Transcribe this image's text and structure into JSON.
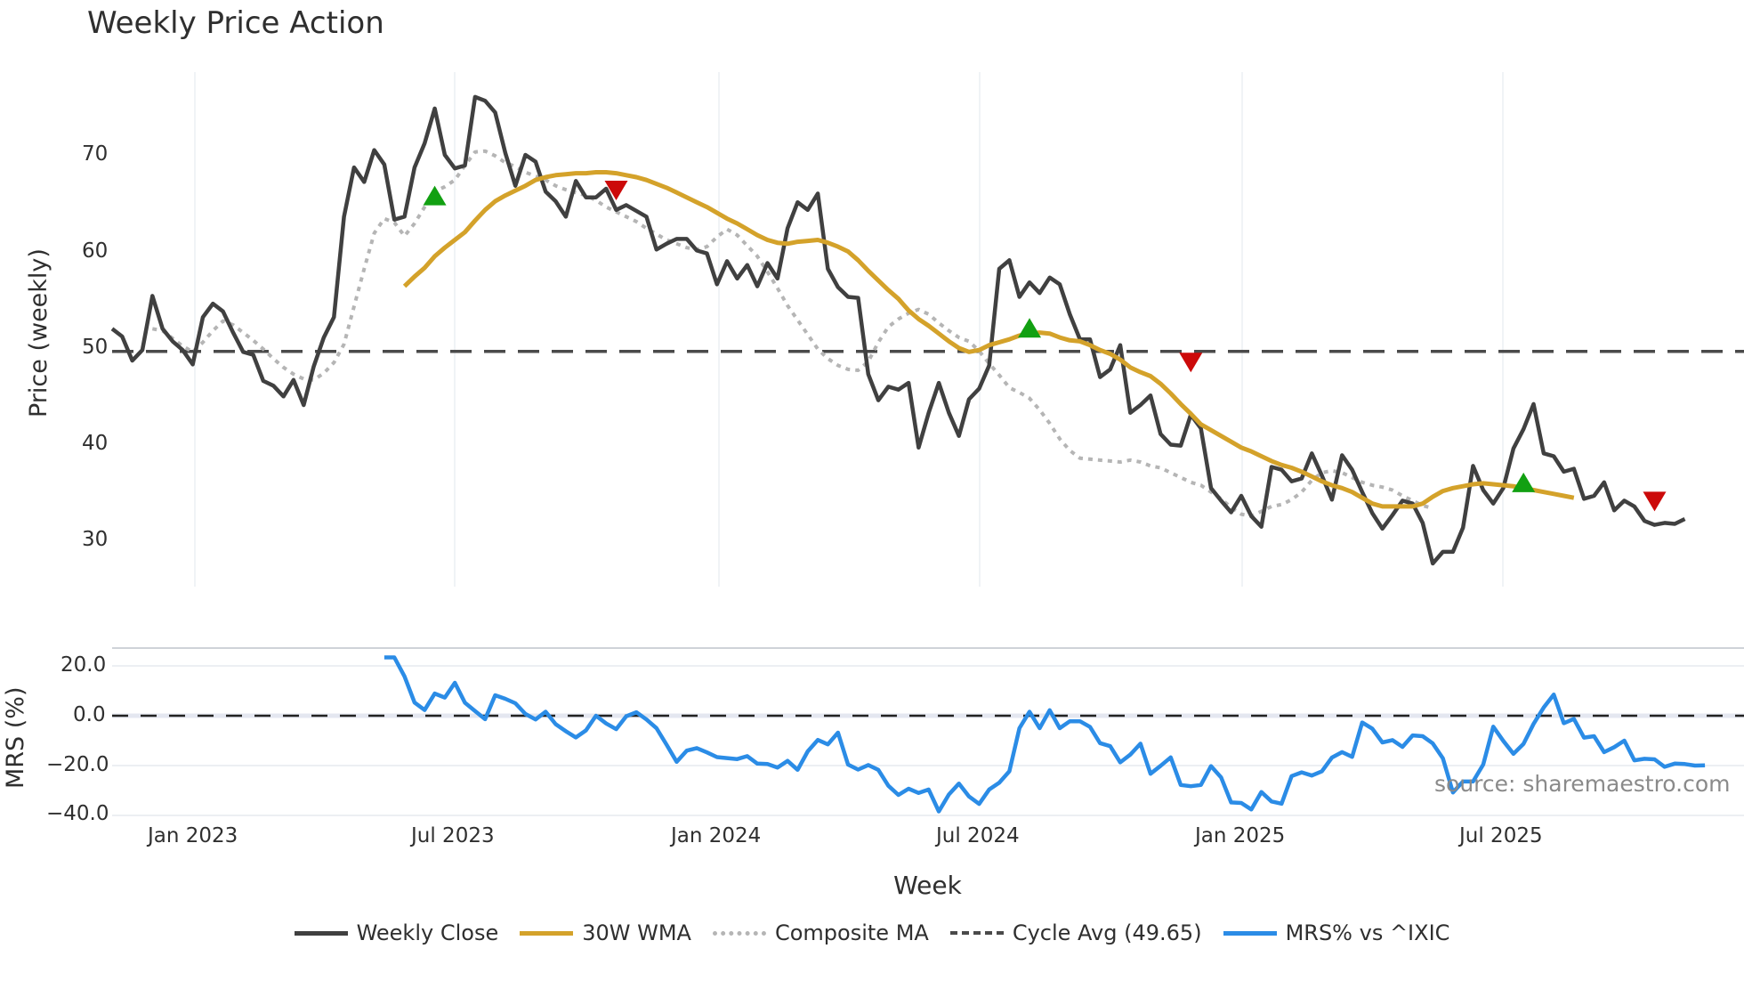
{
  "title": "Weekly Price Action",
  "source_note": "source: sharemaestro.com",
  "colors": {
    "close": "#404040",
    "wma": "#d4a22a",
    "composite": "#b5b5b5",
    "cycle": "#4a4a4a",
    "mrs": "#2b8ce6",
    "buy": "#12a012",
    "sell": "#cc0a0a",
    "grid": "#eceff3",
    "source": "#8a8a8a"
  },
  "legend": [
    {
      "label": "Weekly Close",
      "style": "solid",
      "color": "#404040"
    },
    {
      "label": "30W WMA",
      "style": "solid",
      "color": "#d4a22a"
    },
    {
      "label": "Composite MA",
      "style": "dotted",
      "color": "#b5b5b5"
    },
    {
      "label": "Cycle Avg (49.65)",
      "style": "dashed",
      "color": "#4a4a4a"
    },
    {
      "label": "MRS% vs ^IXIC",
      "style": "solid",
      "color": "#2b8ce6"
    }
  ],
  "chart_data": [
    {
      "type": "line",
      "title": "Weekly Price Action",
      "xlabel": "",
      "ylabel": "Price (weekly)",
      "ylim": [
        25,
        78
      ],
      "yticks": [
        30,
        40,
        50,
        60,
        70
      ],
      "x_start": "2022-11-07",
      "x_step_weeks": 1,
      "x_ticks": [
        "Jan 2023",
        "Jul 2023",
        "Jan 2024",
        "Jul 2024",
        "Jan 2025",
        "Jul 2025"
      ],
      "grid": "vertical",
      "series": [
        {
          "name": "Weekly Close",
          "start_index": 0,
          "values": [
            52.0,
            51.2,
            48.7,
            49.8,
            55.4,
            52.0,
            50.7,
            49.8,
            48.3,
            53.2,
            54.6,
            53.8,
            51.6,
            49.6,
            49.3,
            46.6,
            46.1,
            45.0,
            46.7,
            44.1,
            48.1,
            51.1,
            53.2,
            63.6,
            68.7,
            67.2,
            70.5,
            69.0,
            63.3,
            63.6,
            68.7,
            71.2,
            74.8,
            70.0,
            68.6,
            68.9,
            76.0,
            75.6,
            74.4,
            70.2,
            66.8,
            70.0,
            69.3,
            66.2,
            65.2,
            63.6,
            67.3,
            65.6,
            65.6,
            66.5,
            64.3,
            64.8,
            64.2,
            63.6,
            60.2,
            60.8,
            61.3,
            61.3,
            60.1,
            59.8,
            56.6,
            59.0,
            57.2,
            58.6,
            56.4,
            58.8,
            57.2,
            62.4,
            65.1,
            64.3,
            66.0,
            58.2,
            56.3,
            55.3,
            55.2,
            47.3,
            44.6,
            46.0,
            45.7,
            46.4,
            39.7,
            43.3,
            46.4,
            43.3,
            40.9,
            44.7,
            45.8,
            48.2,
            58.2,
            59.1,
            55.3,
            56.8,
            55.7,
            57.3,
            56.6,
            53.5,
            50.9,
            50.9,
            47.0,
            47.8,
            50.3,
            43.3,
            44.1,
            45.1,
            41.1,
            40.0,
            39.9,
            43.1,
            41.7,
            35.5,
            34.2,
            33.0,
            34.7,
            32.6,
            31.5,
            37.7,
            37.4,
            36.2,
            36.5,
            39.1,
            36.8,
            34.3,
            38.9,
            37.4,
            35.1,
            32.9,
            31.3,
            32.7,
            34.2,
            33.9,
            31.9,
            27.7,
            28.9,
            28.9,
            31.4,
            37.8,
            35.3,
            33.9,
            35.5,
            39.6,
            41.6,
            44.2,
            39.1,
            38.8,
            37.2,
            37.5,
            34.4,
            34.7,
            36.1,
            33.2,
            34.2,
            33.6,
            32.1,
            31.7,
            31.9,
            31.8,
            32.3
          ]
        },
        {
          "name": "30W WMA",
          "start_index": 29,
          "values": [
            56.4,
            57.4,
            58.3,
            59.5,
            60.4,
            61.2,
            62.0,
            63.2,
            64.3,
            65.2,
            65.8,
            66.3,
            66.8,
            67.4,
            67.7,
            67.9,
            68.0,
            68.1,
            68.1,
            68.2,
            68.2,
            68.1,
            67.9,
            67.7,
            67.4,
            67.0,
            66.6,
            66.1,
            65.6,
            65.1,
            64.6,
            64.0,
            63.4,
            62.9,
            62.3,
            61.7,
            61.2,
            60.9,
            60.8,
            61.0,
            61.1,
            61.2,
            60.9,
            60.5,
            60.0,
            59.1,
            58.0,
            57.0,
            56.0,
            55.1,
            53.9,
            53.0,
            52.3,
            51.5,
            50.7,
            50.0,
            49.6,
            49.8,
            50.3,
            50.6,
            50.9,
            51.3,
            51.5,
            51.6,
            51.5,
            51.1,
            50.8,
            50.7,
            50.3,
            49.8,
            49.4,
            48.8,
            48.0,
            47.5,
            47.1,
            46.3,
            45.3,
            44.2,
            43.2,
            42.1,
            41.5,
            40.9,
            40.3,
            39.7,
            39.3,
            38.8,
            38.3,
            37.9,
            37.6,
            37.2,
            36.7,
            36.2,
            35.8,
            35.5,
            35.1,
            34.5,
            33.9,
            33.6,
            33.6,
            33.6,
            33.6,
            33.9,
            34.6,
            35.2,
            35.5,
            35.7,
            35.9,
            36.0,
            35.9,
            35.8,
            35.7,
            35.5,
            35.3,
            35.1,
            34.9,
            34.7,
            34.5
          ]
        },
        {
          "name": "Composite MA",
          "start_index": 4,
          "values": [
            52.0,
            51.8,
            51.0,
            50.2,
            49.6,
            50.6,
            51.8,
            52.8,
            52.4,
            51.6,
            50.8,
            49.9,
            48.9,
            48.0,
            47.3,
            46.8,
            46.7,
            47.4,
            48.5,
            50.4,
            54.3,
            58.2,
            61.9,
            63.4,
            63.0,
            61.6,
            62.9,
            64.6,
            66.2,
            66.7,
            67.4,
            68.9,
            70.3,
            70.4,
            69.9,
            69.2,
            68.8,
            68.2,
            67.8,
            67.4,
            66.8,
            66.4,
            66.1,
            65.8,
            65.3,
            64.6,
            64.1,
            63.6,
            63.1,
            62.4,
            61.8,
            61.2,
            60.8,
            60.4,
            60.2,
            60.5,
            61.5,
            62.3,
            61.7,
            60.6,
            59.5,
            57.9,
            56.2,
            54.4,
            52.9,
            51.4,
            49.9,
            48.9,
            48.2,
            47.8,
            47.7,
            48.6,
            50.6,
            52.2,
            53.0,
            53.6,
            54.0,
            53.5,
            52.6,
            51.8,
            51.1,
            50.7,
            49.7,
            48.4,
            47.2,
            45.9,
            45.4,
            44.8,
            43.6,
            42.2,
            40.6,
            39.4,
            38.6,
            38.5,
            38.4,
            38.3,
            38.2,
            38.4,
            38.2,
            37.8,
            37.6,
            37.1,
            36.6,
            36.1,
            35.8,
            35.1,
            34.4,
            33.5,
            32.8,
            32.6,
            33.1,
            33.6,
            33.8,
            34.3,
            35.1,
            36.3,
            37.1,
            37.3,
            37.1,
            36.6,
            36.1,
            35.8,
            35.6,
            35.3,
            34.7,
            34.2,
            33.7,
            33.4
          ]
        },
        {
          "name": "Cycle Avg (49.65)",
          "constant": 49.65,
          "style": "dashed"
        }
      ],
      "markers": [
        {
          "type": "buy",
          "index": 32,
          "value": 65.7
        },
        {
          "type": "sell",
          "index": 50,
          "value": 66.4
        },
        {
          "type": "buy",
          "index": 91,
          "value": 52.0
        },
        {
          "type": "sell",
          "index": 107,
          "value": 48.6
        },
        {
          "type": "buy",
          "index": 140,
          "value": 36.0
        },
        {
          "type": "sell",
          "index": 153,
          "value": 34.2
        }
      ]
    },
    {
      "type": "line",
      "title": "",
      "xlabel": "Week",
      "ylabel": "MRS (%)",
      "ylim": [
        -40,
        27
      ],
      "yticks": [
        20.0,
        0.0,
        -20.0,
        -40.0
      ],
      "ytick_labels": [
        "20.0",
        "0.0",
        "−20.0",
        "−40.0"
      ],
      "x_start": "2022-11-07",
      "x_ticks": [
        "Jan 2023",
        "Jul 2023",
        "Jan 2024",
        "Jul 2024",
        "Jan 2025",
        "Jul 2025"
      ],
      "zero_line": "dashed",
      "series": [
        {
          "name": "MRS% vs ^IXIC",
          "start_index": 27,
          "values": [
            23.4,
            23.4,
            15.8,
            5.3,
            2.3,
            8.9,
            7.3,
            13.2,
            5.2,
            1.9,
            -1.4,
            8.2,
            6.8,
            5.0,
            0.7,
            -1.5,
            1.6,
            -3.4,
            -6.2,
            -8.7,
            -5.9,
            0.0,
            -3.1,
            -5.4,
            -0.2,
            1.4,
            -1.5,
            -5.0,
            -11.6,
            -18.5,
            -14.0,
            -13.0,
            -14.7,
            -16.6,
            -17.0,
            -17.4,
            -16.2,
            -19.2,
            -19.4,
            -20.8,
            -18.1,
            -21.7,
            -14.3,
            -9.7,
            -11.5,
            -6.8,
            -19.6,
            -21.6,
            -19.8,
            -21.7,
            -28.1,
            -31.8,
            -29.3,
            -31.0,
            -29.6,
            -38.4,
            -31.6,
            -27.2,
            -32.4,
            -35.4,
            -29.6,
            -26.9,
            -22.3,
            -5.0,
            1.6,
            -5.0,
            2.2,
            -5.0,
            -2.2,
            -2.2,
            -4.5,
            -11.0,
            -12.2,
            -18.7,
            -15.6,
            -11.2,
            -23.3,
            -20.1,
            -16.7,
            -27.8,
            -28.3,
            -27.8,
            -20.2,
            -24.7,
            -34.8,
            -35.0,
            -37.6,
            -30.6,
            -34.4,
            -35.3,
            -24.2,
            -22.7,
            -24.0,
            -22.3,
            -16.8,
            -14.6,
            -16.5,
            -2.7,
            -5.2,
            -10.7,
            -9.8,
            -12.5,
            -7.9,
            -8.2,
            -11.1,
            -17.1,
            -30.8,
            -26.4,
            -26.4,
            -19.6,
            -4.4,
            -10.1,
            -15.3,
            -11.3,
            -3.3,
            3.3,
            8.5,
            -3.0,
            -1.3,
            -8.8,
            -8.2,
            -14.6,
            -12.6,
            -10.0,
            -17.9,
            -17.3,
            -17.5,
            -20.5,
            -19.2,
            -19.4,
            -20.0,
            -19.9
          ]
        }
      ]
    }
  ],
  "axes": {
    "price_ylabel": "Price (weekly)",
    "price_yticks": [
      "70",
      "60",
      "50",
      "40",
      "30"
    ],
    "mrs_ylabel": "MRS (%)",
    "mrs_yticks": [
      "20.0",
      "0.0",
      "−20.0",
      "−40.0"
    ],
    "xticks": [
      "Jan 2023",
      "Jul 2023",
      "Jan 2024",
      "Jul 2024",
      "Jan 2025",
      "Jul 2025"
    ],
    "xlabel": "Week"
  }
}
